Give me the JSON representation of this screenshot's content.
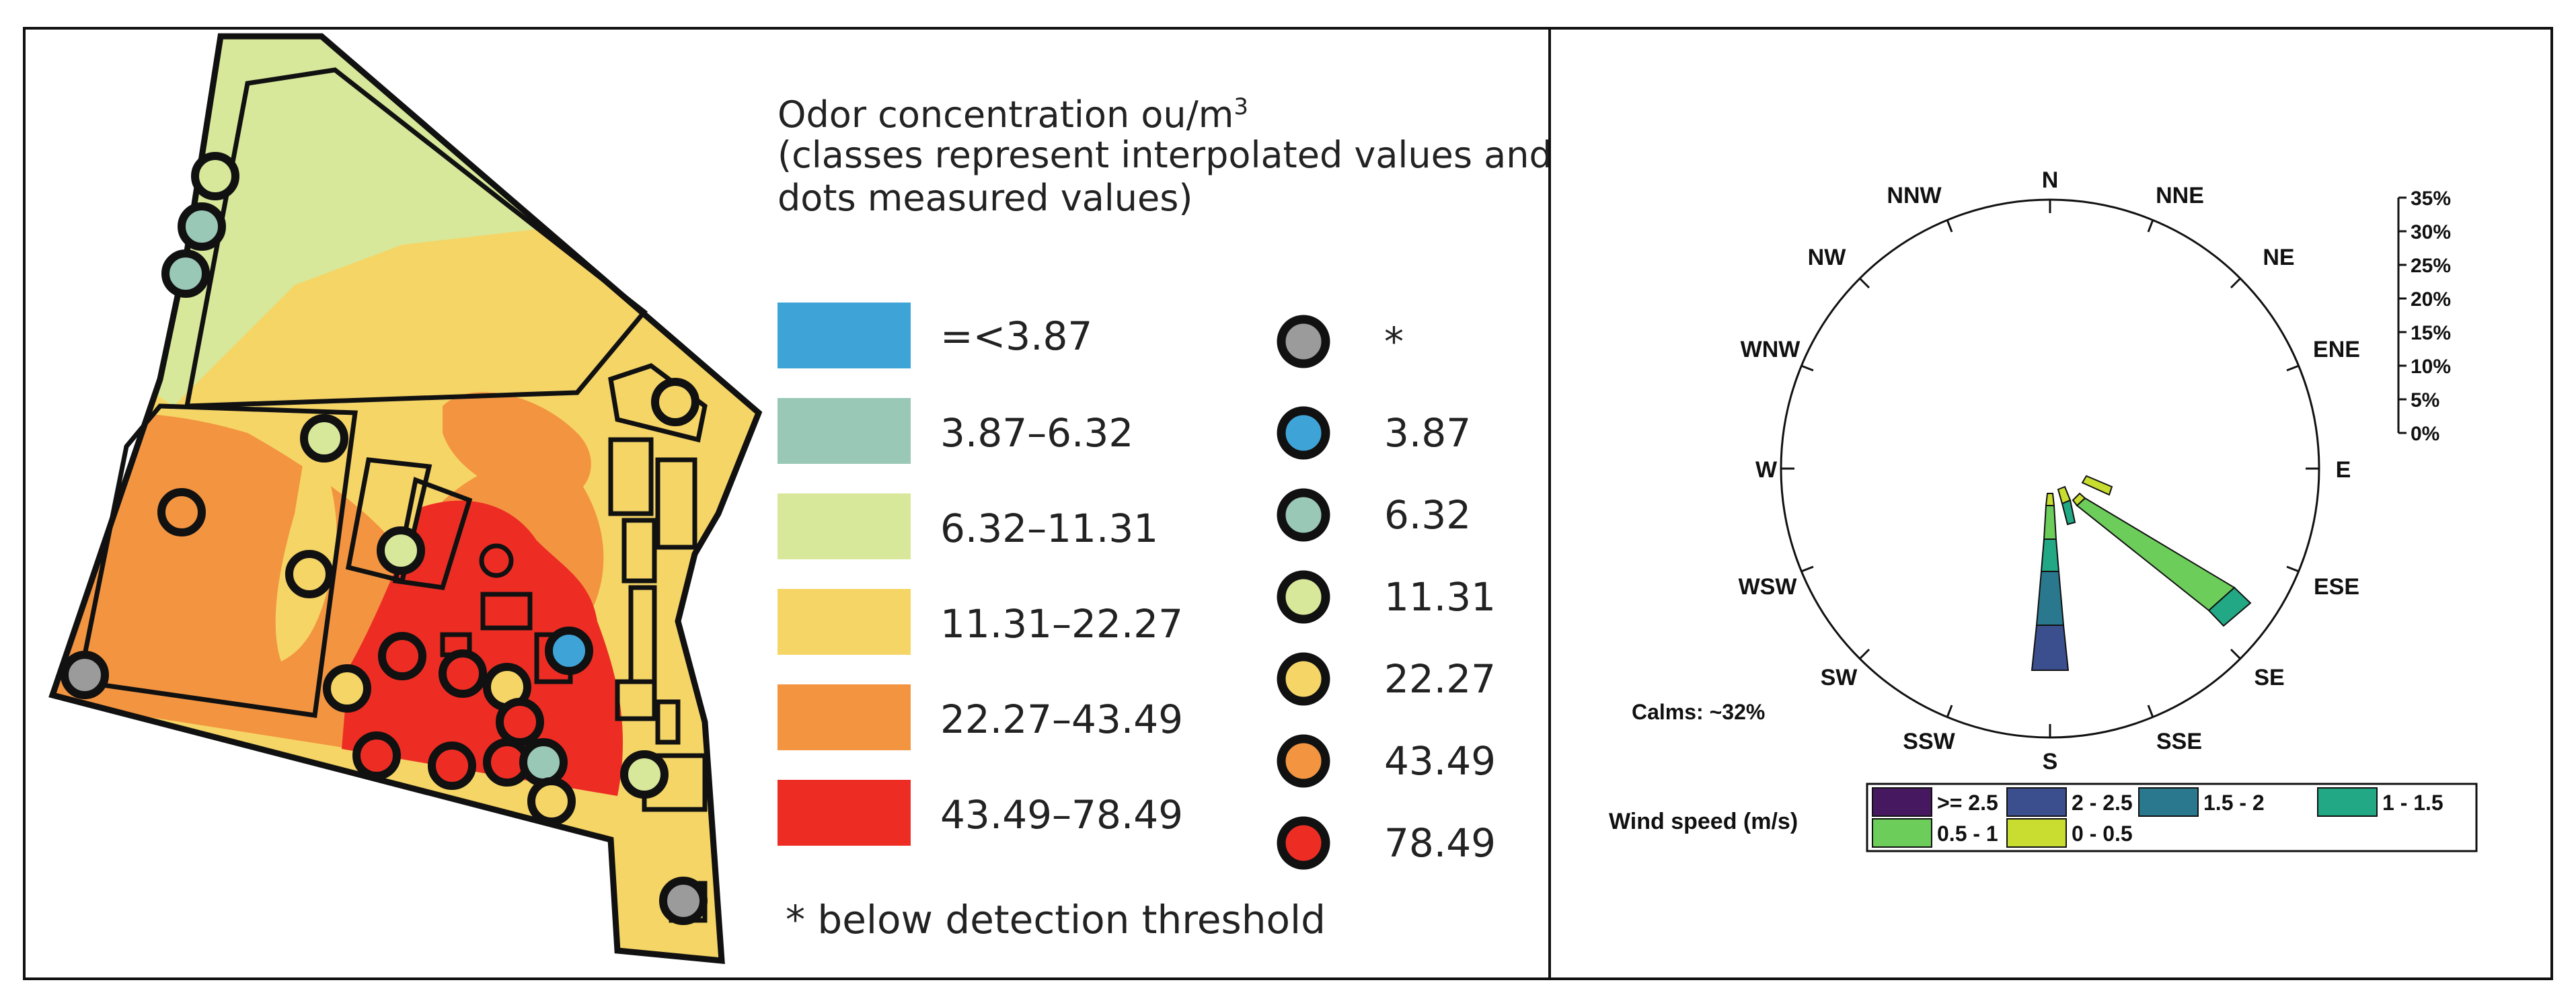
{
  "map_legend": {
    "title_main": "Odor concentration ou/m",
    "title_sup": "3",
    "title_line2": "(classes represent interpolated values and",
    "title_line3": "dots measured values)",
    "classes": [
      {
        "label": "=<3.87",
        "color": "#3ea4d8"
      },
      {
        "label": "3.87–6.32",
        "color": "#9ac8b6"
      },
      {
        "label": "6.32–11.31",
        "color": "#d7e89a"
      },
      {
        "label": "11.31–22.27",
        "color": "#f5d566"
      },
      {
        "label": "22.27–43.49",
        "color": "#f39440"
      },
      {
        "label": "43.49–78.49",
        "color": "#ed2d24"
      }
    ],
    "points": [
      {
        "label": "*",
        "color": "#9b9b9b"
      },
      {
        "label": "3.87",
        "color": "#3ea4d8"
      },
      {
        "label": "6.32",
        "color": "#9ac8b6"
      },
      {
        "label": "11.31",
        "color": "#d7e89a"
      },
      {
        "label": "22.27",
        "color": "#f5d566"
      },
      {
        "label": "43.49",
        "color": "#f39440"
      },
      {
        "label": "78.49",
        "color": "#ed2d24"
      }
    ],
    "note": "* below detection threshold"
  },
  "wind_rose": {
    "directions": [
      "N",
      "NNE",
      "NE",
      "ENE",
      "E",
      "ESE",
      "SE",
      "SSE",
      "S",
      "SSW",
      "SW",
      "WSW",
      "W",
      "WNW",
      "NW",
      "NNW"
    ],
    "scale_labels": [
      "35%",
      "30%",
      "25%",
      "20%",
      "15%",
      "10%",
      "5%",
      "0%"
    ],
    "calms": "Calms: ~32%",
    "legend_title": "Wind speed (m/s)",
    "speed_classes": [
      {
        "label": ">= 2.5",
        "color": "#46185f"
      },
      {
        "label": "2 - 2.5",
        "color": "#3b4f8e"
      },
      {
        "label": "1.5 - 2",
        "color": "#2a788e"
      },
      {
        "label": "1 - 1.5",
        "color": "#22a884"
      },
      {
        "label": "0.5 - 1",
        "color": "#6ccd5a"
      },
      {
        "label": "0 - 0.5",
        "color": "#c8dd30"
      }
    ]
  }
}
